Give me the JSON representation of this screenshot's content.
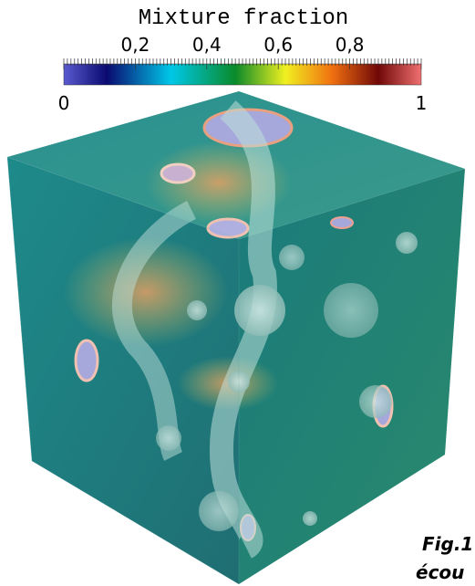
{
  "colorbar": {
    "title": "Mixture fraction",
    "tick_labels": [
      "0,2",
      "0,4",
      "0,6",
      "0,8"
    ],
    "min_label": "0",
    "max_label": "1"
  },
  "caption": {
    "label": "Fig.1",
    "text": "écou"
  }
}
